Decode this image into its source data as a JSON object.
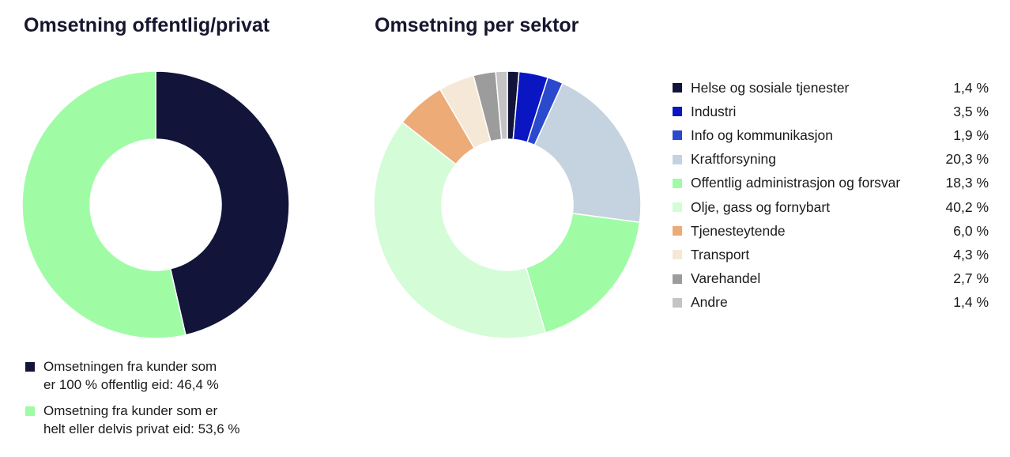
{
  "chart_data": [
    {
      "type": "pie",
      "title": "Omsetning offentlig/privat",
      "slices": [
        {
          "label": "Omsetningen fra kunder som\ner 100 % offentlig eid: 46,4 %",
          "value": 46.4,
          "color": "#12143a"
        },
        {
          "label": "Omsetning fra kunder som er\nhelt eller delvis privat eid: 53,6 %",
          "value": 53.6,
          "color": "#9ffca5"
        }
      ]
    },
    {
      "type": "pie",
      "title": "Omsetning per sektor",
      "slices": [
        {
          "label": "Helse og sosiale tjenester",
          "value": 1.4,
          "display": "1,4 %",
          "color": "#12143a"
        },
        {
          "label": "Industri",
          "value": 3.5,
          "display": "3,5 %",
          "color": "#0a16c2"
        },
        {
          "label": "Info og kommunikasjon",
          "value": 1.9,
          "display": "1,9 %",
          "color": "#2a49cc"
        },
        {
          "label": "Kraftforsyning",
          "value": 20.3,
          "display": "20,3 %",
          "color": "#c5d3e0"
        },
        {
          "label": "Offentlig administrasjon og forsvar",
          "value": 18.3,
          "display": "18,3 %",
          "color": "#9ffca5"
        },
        {
          "label": "Olje, gass og fornybart",
          "value": 40.2,
          "display": "40,2 %",
          "color": "#d3fcd7"
        },
        {
          "label": "Tjenesteytende",
          "value": 6.0,
          "display": "6,0 %",
          "color": "#edab78"
        },
        {
          "label": "Transport",
          "value": 4.3,
          "display": "4,3 %",
          "color": "#f5e8d6"
        },
        {
          "label": "Varehandel",
          "value": 2.7,
          "display": "2,7 %",
          "color": "#9c9c9c"
        },
        {
          "label": "Andre",
          "value": 1.4,
          "display": "1,4 %",
          "color": "#c4c4c4"
        }
      ]
    }
  ]
}
